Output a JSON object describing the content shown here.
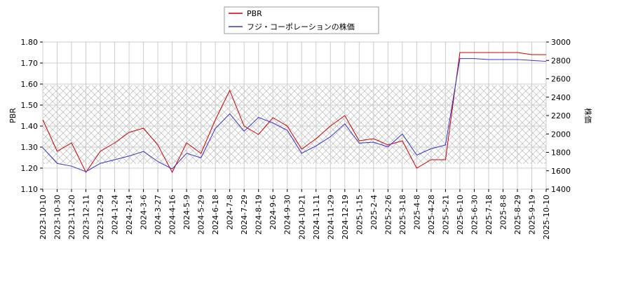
{
  "chart_data": {
    "type": "line",
    "y_label": "PBR",
    "y2_label": "株価",
    "x": [
      "2023-10-10",
      "2023-10-30",
      "2023-11-20",
      "2023-12-11",
      "2023-12-29",
      "2024-1-24",
      "2024-2-14",
      "2024-3-6",
      "2024-3-27",
      "2024-4-16",
      "2024-5-9",
      "2024-5-29",
      "2024-6-18",
      "2024-7-8",
      "2024-7-29",
      "2024-8-19",
      "2024-9-6",
      "2024-9-30",
      "2024-10-21",
      "2024-11-11",
      "2024-11-29",
      "2024-12-19",
      "2025-1-15",
      "2025-2-4",
      "2025-2-26",
      "2025-3-18",
      "2025-4-8",
      "2025-4-28",
      "2025-5-21",
      "2025-6-10",
      "2025-6-30",
      "2025-7-18",
      "2025-8-8",
      "2025-8-29",
      "2025-9-19",
      "2025-10-10"
    ],
    "series": [
      {
        "name": "PBR",
        "color": "#cc0000",
        "values": [
          1.43,
          1.28,
          1.32,
          1.18,
          1.28,
          1.32,
          1.37,
          1.39,
          1.31,
          1.18,
          1.32,
          1.27,
          1.43,
          1.57,
          1.4,
          1.36,
          1.44,
          1.4,
          1.29,
          1.34,
          1.4,
          1.45,
          1.33,
          1.34,
          1.31,
          1.33,
          1.2,
          1.24,
          1.24,
          1.75,
          1.75,
          1.75,
          1.75,
          1.75,
          1.74,
          1.74
        ]
      },
      {
        "name": "フジ・コーポレーションの株価",
        "color": "#3333cc",
        "axis": "y2",
        "values": [
          1850,
          1680,
          1650,
          1590,
          1680,
          1720,
          1760,
          1810,
          1700,
          1620,
          1790,
          1740,
          2060,
          2220,
          2030,
          2180,
          2120,
          2040,
          1790,
          1870,
          1970,
          2110,
          1900,
          1910,
          1860,
          2000,
          1770,
          1840,
          1880,
          2820,
          2820,
          2810,
          2810,
          2810,
          2800,
          2790
        ]
      }
    ],
    "ylim": [
      1.1,
      1.8
    ],
    "yticks": [
      {
        "value": 1.1,
        "label": "1.10"
      },
      {
        "value": 1.2,
        "label": "1.20"
      },
      {
        "value": 1.3,
        "label": "1.30"
      },
      {
        "value": 1.4,
        "label": "1.40"
      },
      {
        "value": 1.5,
        "label": "1.50"
      },
      {
        "value": 1.6,
        "label": "1.60"
      },
      {
        "value": 1.7,
        "label": "1.70"
      },
      {
        "value": 1.8,
        "label": "1.80"
      }
    ],
    "y2lim": [
      1400,
      3000
    ],
    "y2ticks": [
      1400,
      1600,
      1800,
      2000,
      2200,
      2400,
      2600,
      2800,
      3000
    ],
    "shaded_range": [
      1.22,
      1.595
    ],
    "grid": true,
    "legend": "top"
  }
}
